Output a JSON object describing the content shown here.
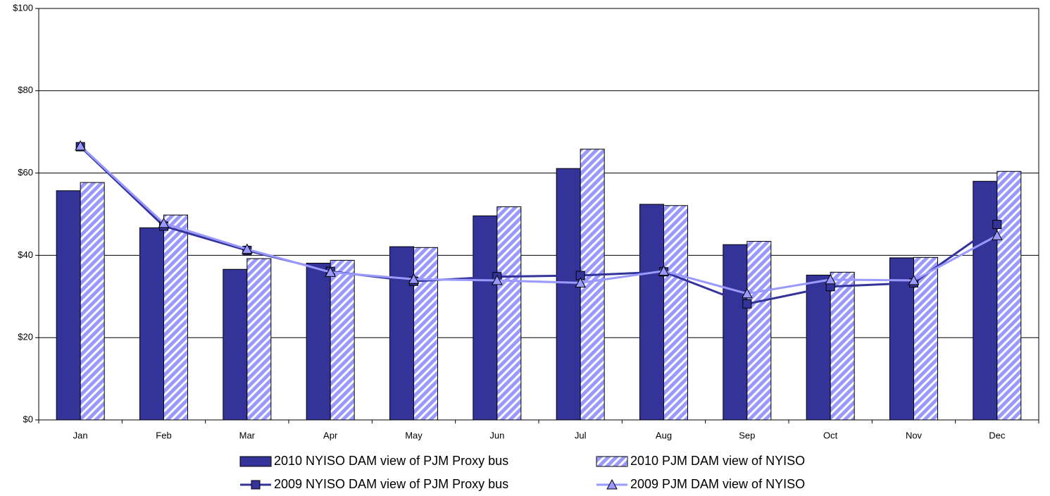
{
  "chart_data": {
    "type": "bar",
    "categories": [
      "Jan",
      "Feb",
      "Mar",
      "Apr",
      "May",
      "Jun",
      "Jul",
      "Aug",
      "Sep",
      "Oct",
      "Nov",
      "Dec"
    ],
    "series": [
      {
        "name": "2010 NYISO DAM view of PJM Proxy bus",
        "type": "bar",
        "color": "#333399",
        "values": [
          55.7,
          46.7,
          36.6,
          38.1,
          42.1,
          49.6,
          61.1,
          52.4,
          42.6,
          35.2,
          39.4,
          58.0
        ]
      },
      {
        "name": "2010 PJM DAM view of NYISO",
        "type": "bar",
        "color": "#9999ff",
        "hatch": true,
        "values": [
          57.7,
          49.8,
          39.2,
          38.8,
          41.9,
          51.8,
          65.8,
          52.1,
          43.4,
          35.9,
          39.5,
          60.4
        ]
      },
      {
        "name": "2009 NYISO DAM view of PJM Proxy bus",
        "type": "line",
        "color": "#333399",
        "marker": "square",
        "values": [
          66.4,
          47.1,
          41.2,
          36.1,
          33.7,
          34.8,
          35.1,
          36.0,
          28.2,
          32.4,
          33.3,
          47.5
        ]
      },
      {
        "name": "2009 PJM DAM view of NYISO",
        "type": "line",
        "color": "#9999ff",
        "marker": "triangle",
        "values": [
          66.6,
          47.8,
          41.5,
          35.9,
          34.2,
          33.9,
          33.3,
          36.2,
          30.7,
          34.1,
          33.9,
          44.8
        ]
      }
    ],
    "ylim": [
      0,
      100
    ],
    "yticks": [
      {
        "value": 0,
        "label": "$0"
      },
      {
        "value": 20,
        "label": "$20"
      },
      {
        "value": 40,
        "label": "$40"
      },
      {
        "value": 60,
        "label": "$60"
      },
      {
        "value": 80,
        "label": "$80"
      },
      {
        "value": 100,
        "label": "$100"
      }
    ],
    "grid": true,
    "legend": "bottom"
  }
}
